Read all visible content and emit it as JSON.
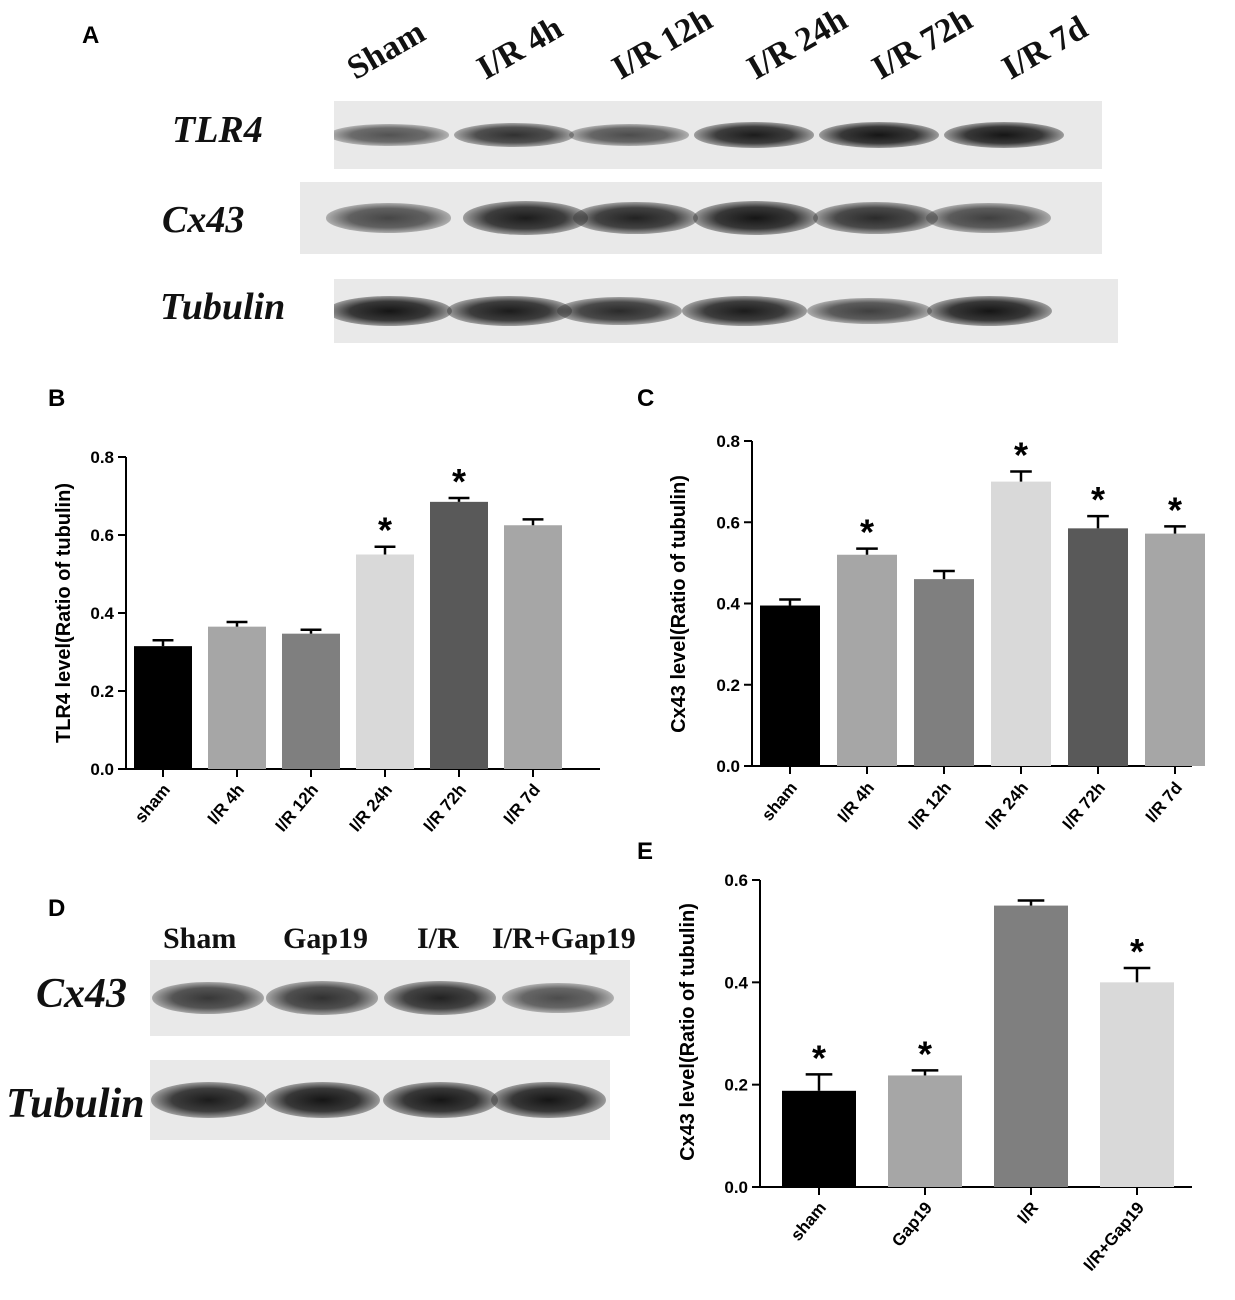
{
  "panels": {
    "A": {
      "label": "A",
      "lanes": [
        "Sham",
        "I/R 4h",
        "I/R 12h",
        "I/R 24h",
        "I/R 72h",
        "I/R 7d"
      ],
      "blots": [
        {
          "name": "TLR4",
          "intensity": [
            0.55,
            0.8,
            0.6,
            0.95,
            1.0,
            1.0
          ]
        },
        {
          "name": "Cx43",
          "intensity": [
            0.65,
            0.95,
            0.9,
            1.0,
            0.85,
            0.7
          ]
        },
        {
          "name": "Tubulin",
          "intensity": [
            1.0,
            0.95,
            0.85,
            0.95,
            0.7,
            1.0
          ]
        }
      ]
    },
    "D": {
      "label": "D",
      "lanes": [
        "Sham",
        "Gap19",
        "I/R",
        "I/R+Gap19"
      ],
      "blots": [
        {
          "name": "Cx43",
          "intensity": [
            0.75,
            0.8,
            0.9,
            0.6
          ]
        },
        {
          "name": "Tubulin",
          "intensity": [
            0.95,
            1.0,
            1.0,
            1.0
          ]
        }
      ]
    }
  },
  "chart_data": [
    {
      "panel": "B",
      "type": "bar",
      "ylabel": "TLR4 level(Ratio of tubulin)",
      "ylim": [
        0,
        0.8
      ],
      "yticks": [
        "0.0",
        "0.2",
        "0.4",
        "0.6",
        "0.8"
      ],
      "categories": [
        "sham",
        "I/R 4h",
        "I/R 12h",
        "I/R 24h",
        "I/R 72h",
        "I/R 7d"
      ],
      "values": [
        0.315,
        0.365,
        0.347,
        0.55,
        0.685,
        0.625
      ],
      "errors": [
        0.015,
        0.012,
        0.01,
        0.02,
        0.01,
        0.015
      ],
      "significance": [
        "",
        "",
        "",
        "*",
        "*",
        ""
      ],
      "colors": [
        "#000000",
        "#a6a6a6",
        "#7f7f7f",
        "#d9d9d9",
        "#595959",
        "#a6a6a6"
      ]
    },
    {
      "panel": "C",
      "type": "bar",
      "ylabel": "Cx43 level(Ratio of tubulin)",
      "ylim": [
        0,
        0.8
      ],
      "yticks": [
        "0.0",
        "0.2",
        "0.4",
        "0.6",
        "0.8"
      ],
      "categories": [
        "sham",
        "I/R 4h",
        "I/R 12h",
        "I/R 24h",
        "I/R 72h",
        "I/R 7d"
      ],
      "values": [
        0.395,
        0.52,
        0.46,
        0.7,
        0.585,
        0.572
      ],
      "errors": [
        0.015,
        0.015,
        0.02,
        0.025,
        0.03,
        0.018
      ],
      "significance": [
        "",
        "*",
        "",
        "*",
        "*",
        "*"
      ],
      "colors": [
        "#000000",
        "#a6a6a6",
        "#7f7f7f",
        "#d9d9d9",
        "#595959",
        "#a6a6a6"
      ]
    },
    {
      "panel": "E",
      "type": "bar",
      "ylabel": "Cx43 level(Ratio of tubulin)",
      "ylim": [
        0,
        0.6
      ],
      "yticks": [
        "0.0",
        "0.2",
        "0.4",
        "0.6"
      ],
      "categories": [
        "sham",
        "Gap19",
        "I/R",
        "I/R+Gap19"
      ],
      "values": [
        0.188,
        0.218,
        0.55,
        0.4
      ],
      "errors": [
        0.032,
        0.01,
        0.01,
        0.028
      ],
      "significance": [
        "*",
        "*",
        "",
        "*"
      ],
      "colors": [
        "#000000",
        "#a6a6a6",
        "#7f7f7f",
        "#d9d9d9"
      ]
    }
  ]
}
